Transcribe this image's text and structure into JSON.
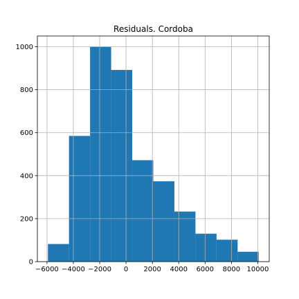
{
  "chart_data": {
    "type": "bar",
    "title": "Residuals. Cordoba",
    "xlabel": "",
    "ylabel": "",
    "bin_edges": [
      -5930,
      -4330,
      -2730,
      -1130,
      470,
      2070,
      3670,
      5270,
      6870,
      8470,
      10070
    ],
    "counts": [
      82,
      585,
      1000,
      892,
      472,
      374,
      233,
      130,
      102,
      46
    ],
    "xlim": [
      -6730,
      10870
    ],
    "ylim": [
      0,
      1050
    ],
    "xticks": [
      -6000,
      -4000,
      -2000,
      0,
      2000,
      4000,
      6000,
      8000,
      10000
    ],
    "xtick_labels": [
      "−6000",
      "−4000",
      "−2000",
      "0",
      "2000",
      "4000",
      "6000",
      "8000",
      "10000"
    ],
    "yticks": [
      0,
      200,
      400,
      600,
      800,
      1000
    ],
    "ytick_labels": [
      "0",
      "200",
      "400",
      "600",
      "800",
      "1000"
    ],
    "grid": true,
    "bar_color": "#1f77b4",
    "legend": "none"
  }
}
